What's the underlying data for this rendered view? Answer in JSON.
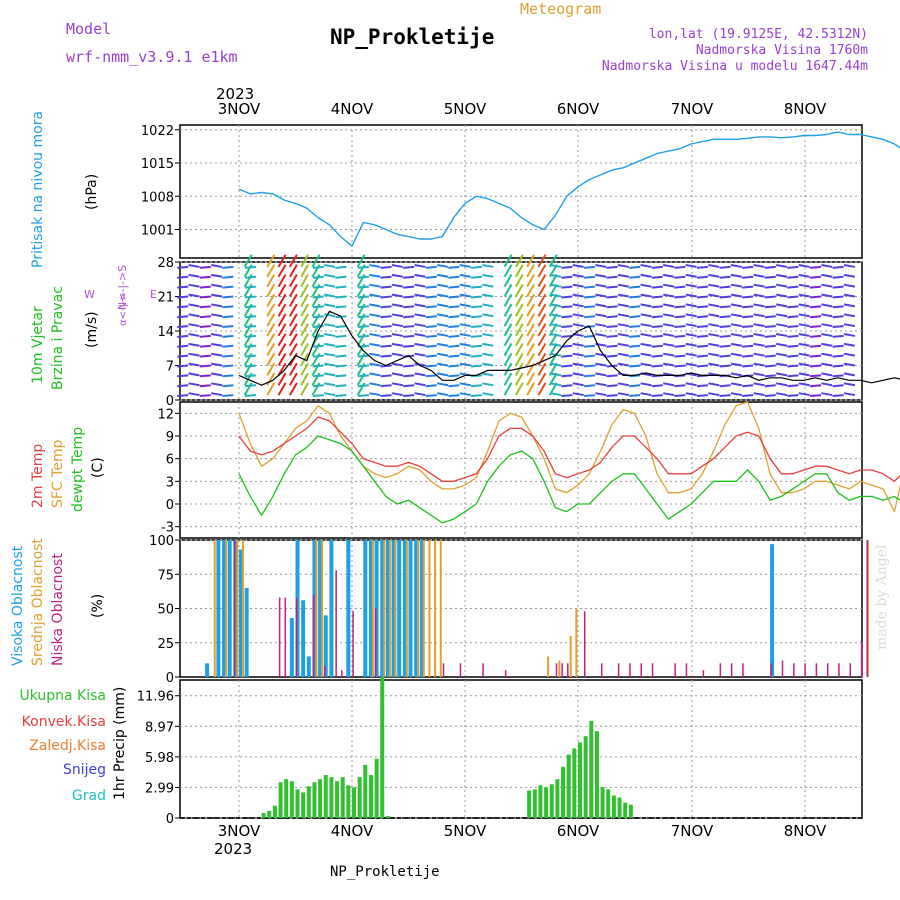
{
  "header": {
    "model_label": "Model",
    "model_value": "wrf-nmm_v3.9.1 e1km",
    "title": "NP_Prokletije",
    "meteogram_label": "Meteogram",
    "lonlat": "lon,lat (19.9125E, 42.5312N)",
    "elevation": "Nadmorska Visina 1760m",
    "model_elevation": "Nadmorska Visina u modelu 1647.44m",
    "year": "2023",
    "footer_title": "NP_Prokletije",
    "watermark": "made by Angel"
  },
  "colors": {
    "pressure": "#1ea0e6",
    "temp2m": "#e84040",
    "sfc": "#e0a030",
    "dewpt": "#20c020",
    "high_cloud": "#1ea0e6",
    "mid_cloud": "#e0a030",
    "low_cloud": "#c02080",
    "precip": "#30c030",
    "grid": "#999999"
  },
  "chart_data": [
    {
      "type": "line",
      "panel": "pressure",
      "ylabel_rot": "Pritisak na nivou mora",
      "unit": "(hPa)",
      "x_ticks": [
        "3NOV",
        "4NOV",
        "5NOV",
        "6NOV",
        "7NOV",
        "8NOV"
      ],
      "y_ticks": [
        1001,
        1008,
        1015,
        1022
      ],
      "ylim": [
        995,
        1023
      ],
      "series": [
        {
          "x": [
            0.0,
            0.1,
            0.2,
            0.3,
            0.4,
            0.5,
            0.6,
            0.7,
            0.8,
            0.9,
            1.0,
            1.1,
            1.2,
            1.3,
            1.4,
            1.5,
            1.6,
            1.7,
            1.8,
            1.9,
            2.0,
            2.1,
            2.2,
            2.3,
            2.4,
            2.5,
            2.6,
            2.7,
            2.8,
            2.9,
            3.0,
            3.1,
            3.2,
            3.3,
            3.4,
            3.5,
            3.6,
            3.7,
            3.8,
            3.9,
            4.0,
            4.1,
            4.2,
            4.3,
            4.4,
            4.5,
            4.6,
            4.7,
            4.8,
            4.9,
            5.0,
            5.1,
            5.2,
            5.3,
            5.4,
            5.5,
            5.6,
            5.7,
            5.8,
            5.9,
            6.0
          ],
          "y": [
            1009.5,
            1008.5,
            1008.8,
            1008.5,
            1007.2,
            1006.5,
            1005.5,
            1003.5,
            1002.0,
            999.5,
            997.5,
            1002.5,
            1002.0,
            1001.0,
            1000.0,
            999.5,
            999.0,
            999.0,
            999.5,
            1003.5,
            1006.5,
            1008.0,
            1007.5,
            1006.5,
            1005.5,
            1003.5,
            1002.0,
            1001.0,
            1004.0,
            1008.0,
            1010.0,
            1011.5,
            1012.5,
            1013.5,
            1014.0,
            1015.0,
            1016.0,
            1017.0,
            1017.5,
            1018.0,
            1019.0,
            1019.5,
            1020.0,
            1020.0,
            1020.0,
            1020.2,
            1020.5,
            1020.5,
            1020.3,
            1020.5,
            1020.8,
            1020.8,
            1021.0,
            1021.5,
            1021.0,
            1021.0,
            1020.5,
            1020.0,
            1019.0,
            1017.5,
            1017.0
          ]
        }
      ]
    },
    {
      "type": "line",
      "panel": "wind",
      "ylabel_rot_1": "10m Vjetar",
      "ylabel_rot_2": "Brzina i Pravac",
      "unit": "(m/s)",
      "compass": "N<-|->S",
      "compass_w": "W",
      "compass_e": "E",
      "compass_side": "α<-|->",
      "y_ticks": [
        0,
        7,
        14,
        21,
        28
      ],
      "y_ticks_bottom_overlap": "1",
      "ylim": [
        0,
        28
      ],
      "series": [
        {
          "x": [
            0.0,
            0.1,
            0.2,
            0.3,
            0.4,
            0.5,
            0.6,
            0.7,
            0.8,
            0.9,
            1.0,
            1.1,
            1.2,
            1.3,
            1.4,
            1.5,
            1.6,
            1.7,
            1.8,
            1.9,
            2.0,
            2.1,
            2.2,
            2.3,
            2.4,
            2.5,
            2.6,
            2.7,
            2.8,
            2.9,
            3.0,
            3.1,
            3.2,
            3.3,
            3.4,
            3.5,
            3.6,
            3.7,
            3.8,
            3.9,
            4.0,
            4.1,
            4.2,
            4.3,
            4.4,
            4.5,
            4.6,
            4.7,
            4.8,
            4.9,
            5.0,
            5.1,
            5.2,
            5.3,
            5.4,
            5.5,
            5.6,
            5.7,
            5.8,
            5.9,
            6.0
          ],
          "y": [
            5,
            4,
            3,
            4,
            6,
            9,
            8,
            14,
            18,
            17,
            13,
            10,
            8,
            7,
            8,
            9,
            7,
            6,
            4,
            4,
            5,
            5,
            6,
            6,
            6,
            6.5,
            7,
            8,
            9,
            12,
            14,
            15,
            10,
            7,
            5,
            5,
            5.5,
            5,
            5,
            5,
            5.5,
            5,
            5,
            5,
            4.5,
            5,
            4,
            4.5,
            4.5,
            4,
            4,
            4.5,
            4,
            4.5,
            4,
            4,
            3.5,
            4,
            4.5,
            4,
            5
          ]
        }
      ]
    },
    {
      "type": "line",
      "panel": "temperature",
      "ylabel_rot_1": "2m Temp",
      "ylabel_rot_2": "SFC Temp",
      "ylabel_rot_3": "dewpt Temp",
      "unit": "(C)",
      "y_ticks": [
        -3,
        0,
        3,
        6,
        9,
        12
      ],
      "ylim": [
        -4.5,
        13.5
      ],
      "series": [
        {
          "name": "2m Temp",
          "x": [
            0.0,
            0.1,
            0.2,
            0.3,
            0.4,
            0.5,
            0.6,
            0.7,
            0.8,
            0.9,
            1.0,
            1.1,
            1.2,
            1.3,
            1.4,
            1.5,
            1.6,
            1.7,
            1.8,
            1.9,
            2.0,
            2.1,
            2.2,
            2.3,
            2.4,
            2.5,
            2.6,
            2.7,
            2.8,
            2.9,
            3.0,
            3.1,
            3.2,
            3.3,
            3.4,
            3.5,
            3.6,
            3.7,
            3.8,
            3.9,
            4.0,
            4.1,
            4.2,
            4.3,
            4.4,
            4.5,
            4.6,
            4.7,
            4.8,
            4.9,
            5.0,
            5.1,
            5.2,
            5.3,
            5.4,
            5.5,
            5.6,
            5.7,
            5.8,
            5.9,
            6.0
          ],
          "y": [
            9,
            7,
            6.5,
            7,
            8,
            9,
            10,
            11.5,
            11,
            9.5,
            8,
            6,
            5.5,
            5,
            5,
            5.5,
            5,
            4,
            3,
            3,
            3.5,
            4,
            6,
            9,
            10,
            10,
            9,
            7,
            4,
            3.5,
            4,
            4.5,
            5.5,
            7.5,
            9,
            9,
            7.5,
            6,
            4,
            4,
            4,
            5,
            6,
            7.5,
            9,
            9.5,
            9,
            6,
            4,
            4,
            4.5,
            5,
            5,
            4.5,
            4,
            4.5,
            4.5,
            4,
            3,
            4.5,
            6
          ]
        },
        {
          "name": "SFC Temp",
          "x": [
            0.0,
            0.1,
            0.2,
            0.3,
            0.4,
            0.5,
            0.6,
            0.7,
            0.8,
            0.9,
            1.0,
            1.1,
            1.2,
            1.3,
            1.4,
            1.5,
            1.6,
            1.7,
            1.8,
            1.9,
            2.0,
            2.1,
            2.2,
            2.3,
            2.4,
            2.5,
            2.6,
            2.7,
            2.8,
            2.9,
            3.0,
            3.1,
            3.2,
            3.3,
            3.4,
            3.5,
            3.6,
            3.7,
            3.8,
            3.9,
            4.0,
            4.1,
            4.2,
            4.3,
            4.4,
            4.5,
            4.6,
            4.7,
            4.8,
            4.9,
            5.0,
            5.1,
            5.2,
            5.3,
            5.4,
            5.5,
            5.6,
            5.7,
            5.8,
            5.9,
            6.0
          ],
          "y": [
            12,
            8,
            5,
            6,
            8,
            10,
            11,
            13,
            12,
            9,
            7,
            5,
            4,
            3.5,
            4,
            5,
            4.5,
            3,
            2,
            2,
            2.5,
            3.5,
            7,
            11,
            12,
            11.5,
            9,
            6,
            2,
            1.5,
            2.5,
            4,
            7,
            10.5,
            12.5,
            12,
            9,
            4,
            1.5,
            1.5,
            2,
            4,
            7,
            10.5,
            13,
            13.5,
            10,
            4,
            1.5,
            1.5,
            2,
            3,
            3,
            2.5,
            2,
            3,
            2.5,
            2,
            -1,
            5.5,
            9
          ]
        },
        {
          "name": "dewpt Temp",
          "x": [
            0.0,
            0.1,
            0.2,
            0.3,
            0.4,
            0.5,
            0.6,
            0.7,
            0.8,
            0.9,
            1.0,
            1.1,
            1.2,
            1.3,
            1.4,
            1.5,
            1.6,
            1.7,
            1.8,
            1.9,
            2.0,
            2.1,
            2.2,
            2.3,
            2.4,
            2.5,
            2.6,
            2.7,
            2.8,
            2.9,
            3.0,
            3.1,
            3.2,
            3.3,
            3.4,
            3.5,
            3.6,
            3.7,
            3.8,
            3.9,
            4.0,
            4.1,
            4.2,
            4.3,
            4.4,
            4.5,
            4.6,
            4.7,
            4.8,
            4.9,
            5.0,
            5.1,
            5.2,
            5.3,
            5.4,
            5.5,
            5.6,
            5.7,
            5.8,
            5.9,
            6.0
          ],
          "y": [
            4,
            1,
            -1.5,
            1,
            4,
            6.5,
            7.5,
            9,
            8.5,
            8,
            7,
            5,
            3,
            1,
            0,
            0.5,
            -0.5,
            -1.5,
            -2.5,
            -2,
            -1,
            0,
            3,
            5,
            6.5,
            7,
            6,
            3,
            -0.5,
            -1,
            0,
            0,
            1.5,
            3,
            4,
            4,
            2,
            0,
            -2,
            -1,
            0,
            1.5,
            3,
            3,
            3,
            4.5,
            3,
            0.5,
            1,
            2,
            3,
            4,
            4,
            1.5,
            0.5,
            1,
            1,
            0.5,
            1,
            0,
            -1
          ]
        }
      ]
    },
    {
      "type": "bar",
      "panel": "cloud",
      "ylabel_rot_1": "Visoka Oblacnost",
      "ylabel_rot_2": "Srednja Oblacnost",
      "ylabel_rot_3": "Niska Oblacnost",
      "unit": "(%)",
      "y_ticks": [
        0,
        25,
        50,
        75,
        100
      ],
      "ylim": [
        0,
        100
      ],
      "series": [
        {
          "name": "Visoka Oblacnost",
          "x": [
            0.15,
            0.25,
            0.3,
            0.35,
            0.4,
            0.45,
            0.5,
            0.55,
            0.65,
            0.9,
            0.95,
            1.0,
            1.05,
            1.1,
            1.15,
            1.2,
            1.25,
            1.3,
            1.35,
            1.4,
            1.55,
            1.6,
            1.65,
            1.7,
            1.75,
            1.8,
            1.85,
            1.9,
            1.95,
            2.0,
            2.05,
            5.15
          ],
          "y": [
            10,
            100,
            100,
            100,
            100,
            93,
            65,
            0,
            0,
            43,
            100,
            56,
            15,
            100,
            100,
            45,
            100,
            0,
            0,
            100,
            100,
            100,
            100,
            100,
            100,
            100,
            100,
            100,
            100,
            100,
            100,
            97
          ]
        },
        {
          "name": "Srednja Oblacnost",
          "x": [
            0.2,
            0.3,
            0.4,
            0.45,
            1.1,
            1.15,
            1.6,
            1.7,
            1.75,
            1.8,
            1.9,
            2.0,
            2.05,
            2.1,
            2.15,
            2.2,
            3.15,
            3.25,
            3.35,
            3.4,
            5.98
          ],
          "y": [
            100,
            100,
            100,
            100,
            100,
            100,
            100,
            100,
            100,
            100,
            100,
            100,
            100,
            100,
            100,
            100,
            15,
            12,
            30,
            50,
            100
          ]
        },
        {
          "name": "Niska Oblacnost",
          "x": [
            0.35,
            0.75,
            0.8,
            0.9,
            1.05,
            1.15,
            1.25,
            1.3,
            1.4,
            1.6,
            2.2,
            2.35,
            2.55,
            2.75,
            3.2,
            3.25,
            3.3,
            3.45,
            3.6,
            3.75,
            3.85,
            3.95,
            4.05,
            4.25,
            4.35,
            4.5,
            4.65,
            4.75,
            4.85,
            5.1,
            5.2,
            5.3,
            5.4,
            5.5,
            5.6,
            5.7,
            5.8,
            5.9,
            5.95
          ],
          "y": [
            100,
            58,
            58,
            58,
            60,
            8,
            78,
            5,
            48,
            50,
            10,
            10,
            10,
            5,
            10,
            10,
            10,
            48,
            10,
            10,
            10,
            10,
            10,
            10,
            10,
            5,
            10,
            10,
            10,
            10,
            12,
            10,
            10,
            10,
            10,
            10,
            10,
            25,
            100
          ]
        }
      ]
    },
    {
      "type": "bar",
      "panel": "precip",
      "ylabel_rot": "1hr Precip (mm)",
      "legend": [
        "Ukupna Kisa",
        "Konvek.Kisa",
        "Zaledj.Kisa",
        "Snijeg",
        "Grad"
      ],
      "legend_colors": [
        "#30c030",
        "#e84040",
        "#f08030",
        "#4040e0",
        "#20c0c0"
      ],
      "y_ticks": [
        0,
        2.99,
        5.98,
        8.97,
        11.96
      ],
      "ylim": [
        0,
        13.5
      ],
      "x_ticks": [
        "3NOV",
        "4NOV",
        "5NOV",
        "6NOV",
        "7NOV",
        "8NOV"
      ],
      "series": [
        {
          "name": "Ukupna Kisa",
          "x": [
            0.0,
            0.05,
            0.1,
            0.15,
            0.2,
            0.25,
            0.3,
            0.35,
            0.4,
            0.45,
            0.5,
            0.55,
            0.6,
            0.65,
            0.7,
            0.75,
            0.8,
            0.85,
            0.9,
            0.95,
            1.0,
            1.05,
            1.1,
            1.15,
            1.2,
            1.25,
            1.3,
            1.35,
            2.6,
            2.65,
            2.7,
            2.75,
            2.8,
            2.85,
            2.9,
            2.95,
            3.0,
            3.05,
            3.1,
            3.15,
            3.2,
            3.25,
            3.3,
            3.35,
            3.4,
            3.45,
            3.5
          ],
          "y": [
            0,
            0,
            0,
            0,
            0,
            0.5,
            0.7,
            1.2,
            3.5,
            3.8,
            3.6,
            2.8,
            2.5,
            3.1,
            3.5,
            3.8,
            4.2,
            4.0,
            3.6,
            4.0,
            3.2,
            3.0,
            4.0,
            5.2,
            4.2,
            5.8,
            13.8,
            0.2,
            2.7,
            2.8,
            3.2,
            3.0,
            3.3,
            3.8,
            5.0,
            6.2,
            6.8,
            7.4,
            8.0,
            9.5,
            8.5,
            3.0,
            2.8,
            2.2,
            2.0,
            1.5,
            1.3
          ]
        }
      ]
    }
  ]
}
